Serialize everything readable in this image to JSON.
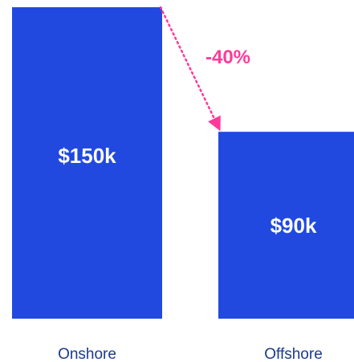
{
  "chart_data": {
    "type": "bar",
    "categories": [
      "Onshore",
      "Offshore"
    ],
    "values": [
      150,
      90
    ],
    "value_labels": [
      "$150k",
      "$90k"
    ],
    "title": "",
    "xlabel": "",
    "ylabel": "",
    "ylim": [
      0,
      150
    ],
    "grid": false,
    "annotation": {
      "text": "-40%",
      "from": "Onshore",
      "to": "Offshore",
      "style": "dotted-arrow"
    }
  },
  "colors": {
    "bar": "#2149e0",
    "value_text": "#ffffff",
    "category_text": "#1b3a8f",
    "annotation": "#ff3b9a"
  }
}
